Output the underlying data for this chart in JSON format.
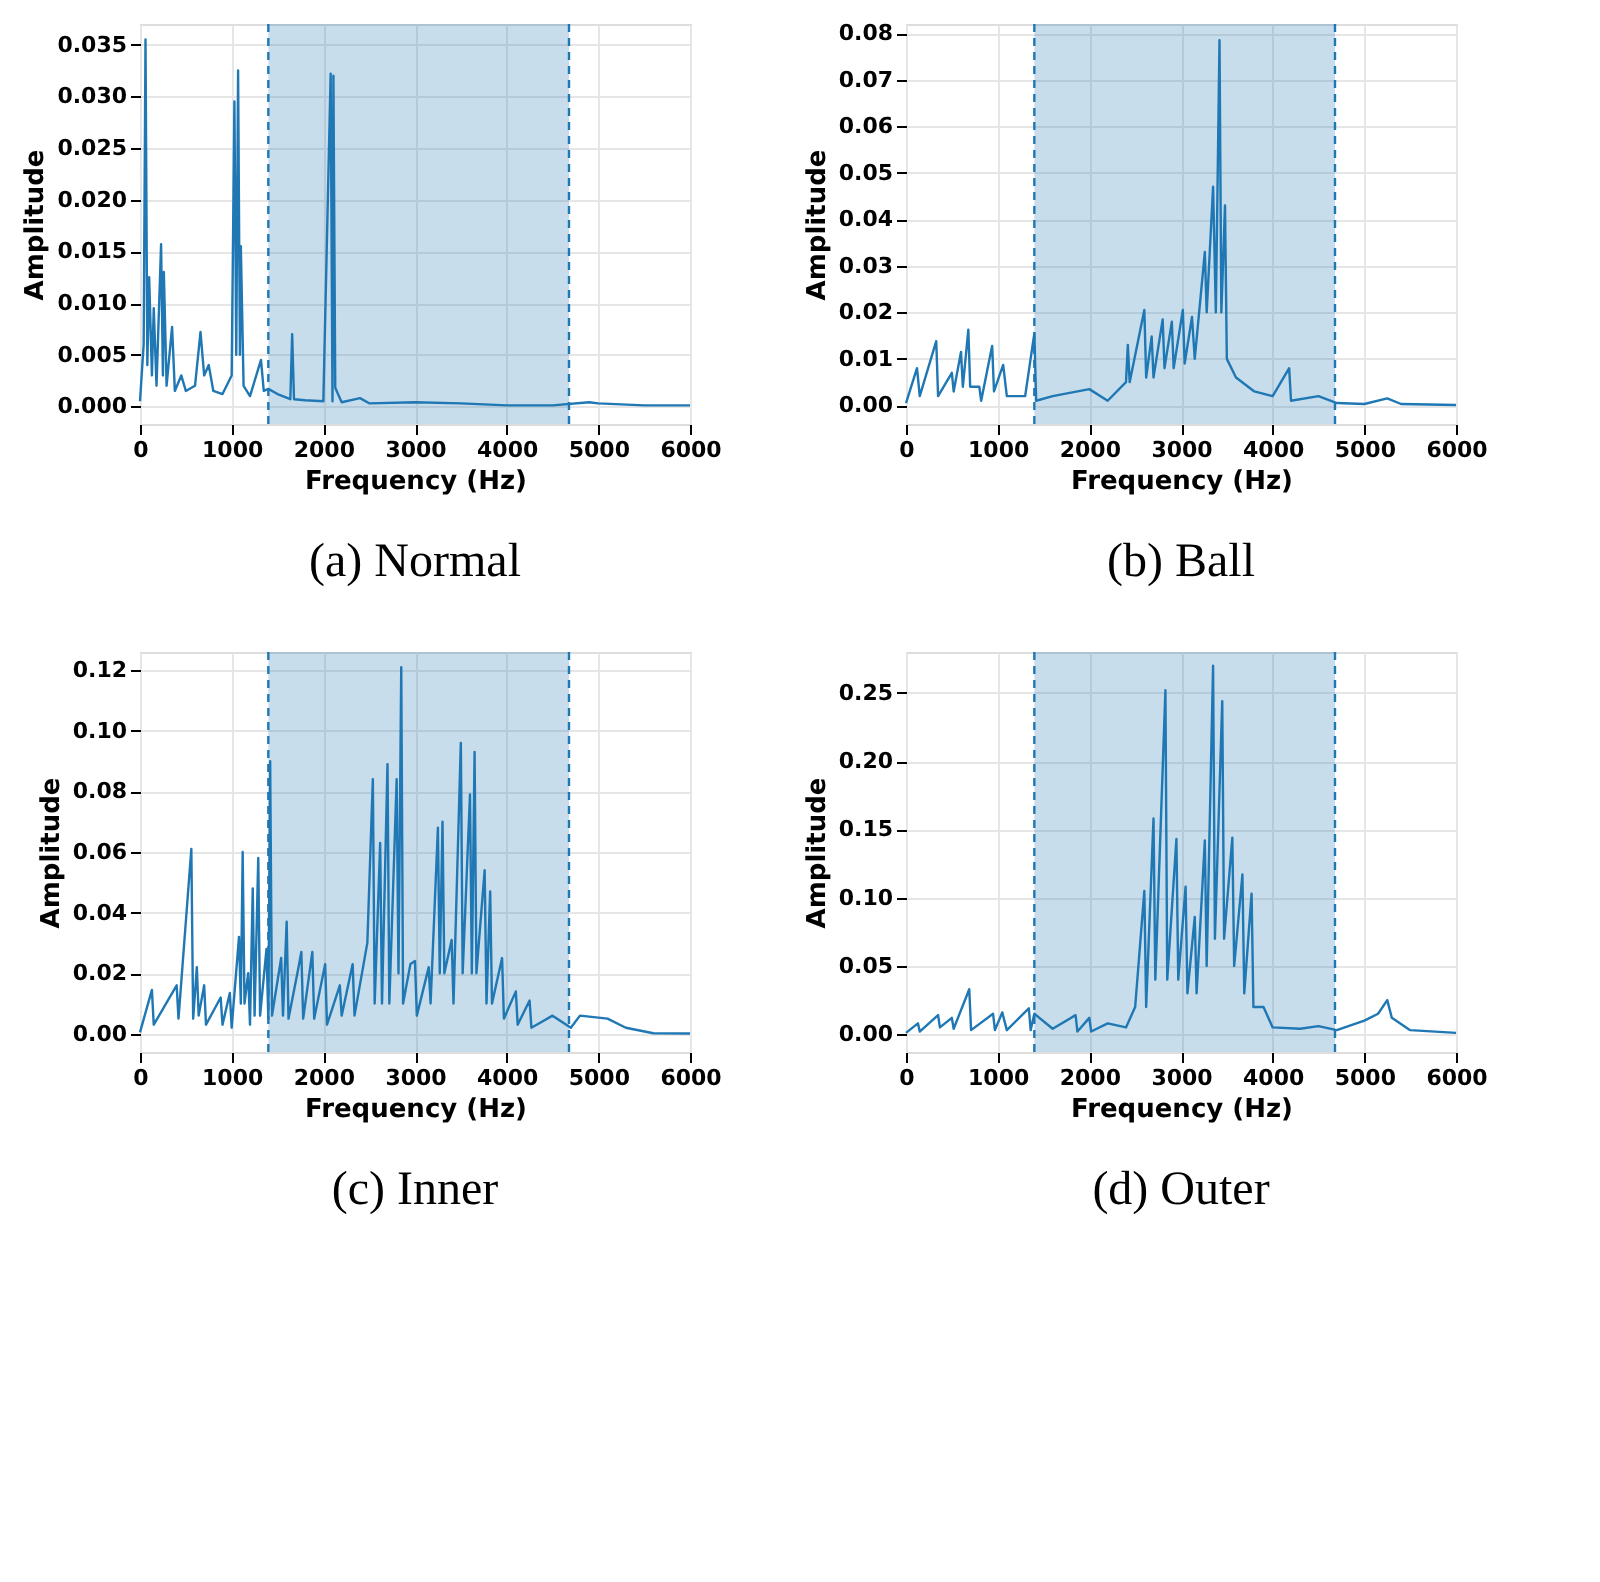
{
  "chart_data": [
    {
      "type": "line",
      "title": "(a)  Normal",
      "xlabel": "Frequency (Hz)",
      "ylabel": "Amplitude",
      "xlim": [
        0,
        6000
      ],
      "xticks": [
        0,
        1000,
        2000,
        3000,
        4000,
        5000,
        6000
      ],
      "ylim": [
        -0.0017,
        0.037
      ],
      "yticks": [
        {
          "value": 0,
          "label": "0.000"
        },
        {
          "value": 0.005,
          "label": "0.005"
        },
        {
          "value": 0.01,
          "label": "0.010"
        },
        {
          "value": 0.015,
          "label": "0.015"
        },
        {
          "value": 0.02,
          "label": "0.020"
        },
        {
          "value": 0.025,
          "label": "0.025"
        },
        {
          "value": 0.03,
          "label": "0.030"
        },
        {
          "value": 0.035,
          "label": "0.035"
        }
      ],
      "grid": true,
      "line_style": "solid",
      "bands": [
        {
          "axis": "x",
          "from": 1400,
          "to": 4680,
          "color": "#1f77b4"
        }
      ],
      "ref_lines": [
        {
          "axis": "x",
          "value": 1400,
          "color": "#1f77b4",
          "line_style": "dashed"
        },
        {
          "axis": "x",
          "value": 4680,
          "color": "#1f77b4",
          "line_style": "dashed"
        }
      ],
      "series": [
        {
          "color": "#1f77b4",
          "x": [
            0,
            40,
            60,
            80,
            100,
            130,
            150,
            180,
            230,
            250,
            260,
            290,
            350,
            380,
            450,
            500,
            600,
            660,
            700,
            750,
            800,
            900,
            1000,
            1030,
            1050,
            1070,
            1090,
            1100,
            1130,
            1200,
            1320,
            1350,
            1400,
            1500,
            1640,
            1660,
            1680,
            1800,
            2000,
            2080,
            2100,
            2110,
            2130,
            2200,
            2400,
            2500,
            3000,
            3500,
            4000,
            4500,
            4900,
            5000,
            5500,
            6000
          ],
          "values": [
            0.0005,
            0.006,
            0.0355,
            0.004,
            0.0125,
            0.003,
            0.0095,
            0.002,
            0.0157,
            0.003,
            0.013,
            0.002,
            0.0077,
            0.0015,
            0.003,
            0.0015,
            0.002,
            0.0072,
            0.003,
            0.004,
            0.0015,
            0.0012,
            0.003,
            0.0295,
            0.005,
            0.0325,
            0.005,
            0.0155,
            0.002,
            0.001,
            0.0045,
            0.0015,
            0.0017,
            0.0012,
            0.0007,
            0.007,
            0.0007,
            0.0006,
            0.0005,
            0.0322,
            0.0005,
            0.032,
            0.0018,
            0.0004,
            0.0008,
            0.0003,
            0.0004,
            0.0003,
            0.0001,
            0.0001,
            0.0004,
            0.0003,
            0.0001,
            0.0001
          ]
        }
      ]
    },
    {
      "type": "line",
      "title": "(b)  Ball",
      "xlabel": "Frequency (Hz)",
      "ylabel": "Amplitude",
      "xlim": [
        0,
        6000
      ],
      "xticks": [
        0,
        1000,
        2000,
        3000,
        4000,
        5000,
        6000
      ],
      "ylim": [
        -0.004,
        0.082
      ],
      "yticks": [
        {
          "value": 0,
          "label": "0.00"
        },
        {
          "value": 0.01,
          "label": "0.01"
        },
        {
          "value": 0.02,
          "label": "0.02"
        },
        {
          "value": 0.03,
          "label": "0.03"
        },
        {
          "value": 0.04,
          "label": "0.04"
        },
        {
          "value": 0.05,
          "label": "0.05"
        },
        {
          "value": 0.06,
          "label": "0.06"
        },
        {
          "value": 0.07,
          "label": "0.07"
        },
        {
          "value": 0.08,
          "label": "0.08"
        }
      ],
      "grid": true,
      "line_style": "solid",
      "bands": [
        {
          "axis": "x",
          "from": 1400,
          "to": 4680,
          "color": "#1f77b4"
        }
      ],
      "ref_lines": [
        {
          "axis": "x",
          "value": 1400,
          "color": "#1f77b4",
          "line_style": "dashed"
        },
        {
          "axis": "x",
          "value": 4680,
          "color": "#1f77b4",
          "line_style": "dashed"
        }
      ],
      "series": [
        {
          "color": "#1f77b4",
          "x": [
            0,
            120,
            150,
            330,
            350,
            500,
            520,
            600,
            620,
            680,
            700,
            800,
            820,
            940,
            960,
            1060,
            1100,
            1300,
            1400,
            1420,
            1600,
            2000,
            2200,
            2400,
            2420,
            2440,
            2600,
            2620,
            2680,
            2700,
            2800,
            2820,
            2900,
            2920,
            3020,
            3040,
            3120,
            3150,
            3260,
            3280,
            3350,
            3380,
            3420,
            3440,
            3480,
            3500,
            3600,
            3800,
            4000,
            4180,
            4200,
            4500,
            4700,
            5000,
            5250,
            5400,
            6000
          ],
          "values": [
            0.0005,
            0.008,
            0.002,
            0.0138,
            0.002,
            0.007,
            0.003,
            0.0115,
            0.004,
            0.0163,
            0.004,
            0.004,
            0.001,
            0.0128,
            0.003,
            0.0087,
            0.002,
            0.002,
            0.0155,
            0.001,
            0.002,
            0.0035,
            0.001,
            0.005,
            0.013,
            0.005,
            0.0205,
            0.006,
            0.0148,
            0.006,
            0.0185,
            0.008,
            0.018,
            0.008,
            0.0205,
            0.009,
            0.019,
            0.01,
            0.033,
            0.02,
            0.047,
            0.02,
            0.0785,
            0.02,
            0.043,
            0.01,
            0.006,
            0.003,
            0.002,
            0.008,
            0.001,
            0.002,
            0.0005,
            0.0003,
            0.0015,
            0.0003,
            0.0001
          ]
        }
      ]
    },
    {
      "type": "line",
      "title": "(c)  Inner",
      "xlabel": "Frequency (Hz)",
      "ylabel": "Amplitude",
      "xlim": [
        0,
        6000
      ],
      "xticks": [
        0,
        1000,
        2000,
        3000,
        4000,
        5000,
        6000
      ],
      "ylim": [
        -0.006,
        0.126
      ],
      "yticks": [
        {
          "value": 0,
          "label": "0.00"
        },
        {
          "value": 0.02,
          "label": "0.02"
        },
        {
          "value": 0.04,
          "label": "0.04"
        },
        {
          "value": 0.06,
          "label": "0.06"
        },
        {
          "value": 0.08,
          "label": "0.08"
        },
        {
          "value": 0.1,
          "label": "0.10"
        },
        {
          "value": 0.12,
          "label": "0.12"
        }
      ],
      "grid": true,
      "line_style": "solid",
      "bands": [
        {
          "axis": "x",
          "from": 1400,
          "to": 4680,
          "color": "#1f77b4"
        }
      ],
      "ref_lines": [
        {
          "axis": "x",
          "value": 1400,
          "color": "#1f77b4",
          "line_style": "dashed"
        },
        {
          "axis": "x",
          "value": 4680,
          "color": "#1f77b4",
          "line_style": "dashed"
        }
      ],
      "series": [
        {
          "color": "#1f77b4",
          "x": [
            0,
            130,
            150,
            400,
            420,
            560,
            580,
            620,
            640,
            700,
            720,
            880,
            900,
            980,
            1000,
            1080,
            1100,
            1120,
            1140,
            1180,
            1200,
            1230,
            1250,
            1290,
            1310,
            1380,
            1400,
            1420,
            1440,
            1540,
            1560,
            1600,
            1620,
            1720,
            1760,
            1780,
            1880,
            1900,
            2020,
            2040,
            2180,
            2200,
            2320,
            2340,
            2480,
            2540,
            2560,
            2620,
            2640,
            2700,
            2720,
            2800,
            2820,
            2850,
            2870,
            2950,
            3000,
            3020,
            3150,
            3170,
            3250,
            3270,
            3300,
            3320,
            3400,
            3420,
            3500,
            3520,
            3600,
            3620,
            3650,
            3670,
            3760,
            3780,
            3820,
            3840,
            3950,
            3970,
            4100,
            4120,
            4250,
            4270,
            4500,
            4700,
            4800,
            5100,
            5300,
            5600,
            6000
          ],
          "values": [
            0.0005,
            0.0145,
            0.003,
            0.016,
            0.005,
            0.061,
            0.005,
            0.022,
            0.006,
            0.016,
            0.003,
            0.012,
            0.003,
            0.0135,
            0.002,
            0.032,
            0.01,
            0.06,
            0.01,
            0.02,
            0.003,
            0.048,
            0.006,
            0.058,
            0.006,
            0.028,
            0.005,
            0.09,
            0.006,
            0.025,
            0.006,
            0.037,
            0.005,
            0.0205,
            0.027,
            0.005,
            0.027,
            0.005,
            0.023,
            0.003,
            0.016,
            0.006,
            0.023,
            0.006,
            0.03,
            0.084,
            0.01,
            0.063,
            0.01,
            0.089,
            0.01,
            0.084,
            0.02,
            0.121,
            0.01,
            0.023,
            0.024,
            0.006,
            0.022,
            0.01,
            0.068,
            0.02,
            0.07,
            0.02,
            0.031,
            0.01,
            0.096,
            0.02,
            0.079,
            0.02,
            0.093,
            0.02,
            0.054,
            0.01,
            0.047,
            0.01,
            0.025,
            0.005,
            0.014,
            0.003,
            0.011,
            0.002,
            0.006,
            0.002,
            0.006,
            0.005,
            0.002,
            0.0002,
            0.0001
          ]
        }
      ]
    },
    {
      "type": "line",
      "title": "(d)  Outer",
      "xlabel": "Frequency (Hz)",
      "ylabel": "Amplitude",
      "xlim": [
        0,
        6000
      ],
      "xticks": [
        0,
        1000,
        2000,
        3000,
        4000,
        5000,
        6000
      ],
      "ylim": [
        -0.013,
        0.28
      ],
      "yticks": [
        {
          "value": 0,
          "label": "0.00"
        },
        {
          "value": 0.05,
          "label": "0.05"
        },
        {
          "value": 0.1,
          "label": "0.10"
        },
        {
          "value": 0.15,
          "label": "0.15"
        },
        {
          "value": 0.2,
          "label": "0.20"
        },
        {
          "value": 0.25,
          "label": "0.25"
        }
      ],
      "grid": true,
      "line_style": "solid",
      "bands": [
        {
          "axis": "x",
          "from": 1400,
          "to": 4680,
          "color": "#1f77b4"
        }
      ],
      "ref_lines": [
        {
          "axis": "x",
          "value": 1400,
          "color": "#1f77b4",
          "line_style": "dashed"
        },
        {
          "axis": "x",
          "value": 4680,
          "color": "#1f77b4",
          "line_style": "dashed"
        }
      ],
      "series": [
        {
          "color": "#1f77b4",
          "x": [
            0,
            130,
            150,
            350,
            370,
            500,
            520,
            690,
            710,
            950,
            970,
            1050,
            1100,
            1340,
            1360,
            1400,
            1600,
            1850,
            1870,
            2000,
            2020,
            2200,
            2400,
            2500,
            2600,
            2620,
            2700,
            2720,
            2830,
            2850,
            2950,
            2970,
            3050,
            3070,
            3150,
            3170,
            3260,
            3280,
            3350,
            3370,
            3450,
            3470,
            3560,
            3580,
            3670,
            3690,
            3770,
            3790,
            3900,
            4000,
            4300,
            4500,
            4700,
            5000,
            5150,
            5250,
            5300,
            5500,
            6000
          ],
          "values": [
            0.001,
            0.008,
            0.002,
            0.014,
            0.005,
            0.012,
            0.004,
            0.033,
            0.003,
            0.015,
            0.003,
            0.016,
            0.003,
            0.019,
            0.003,
            0.015,
            0.004,
            0.014,
            0.002,
            0.012,
            0.002,
            0.008,
            0.005,
            0.02,
            0.105,
            0.02,
            0.158,
            0.04,
            0.252,
            0.04,
            0.143,
            0.04,
            0.108,
            0.03,
            0.086,
            0.03,
            0.142,
            0.05,
            0.27,
            0.07,
            0.244,
            0.07,
            0.144,
            0.05,
            0.117,
            0.03,
            0.103,
            0.02,
            0.02,
            0.005,
            0.004,
            0.006,
            0.003,
            0.01,
            0.015,
            0.025,
            0.012,
            0.003,
            0.001
          ]
        }
      ]
    }
  ]
}
